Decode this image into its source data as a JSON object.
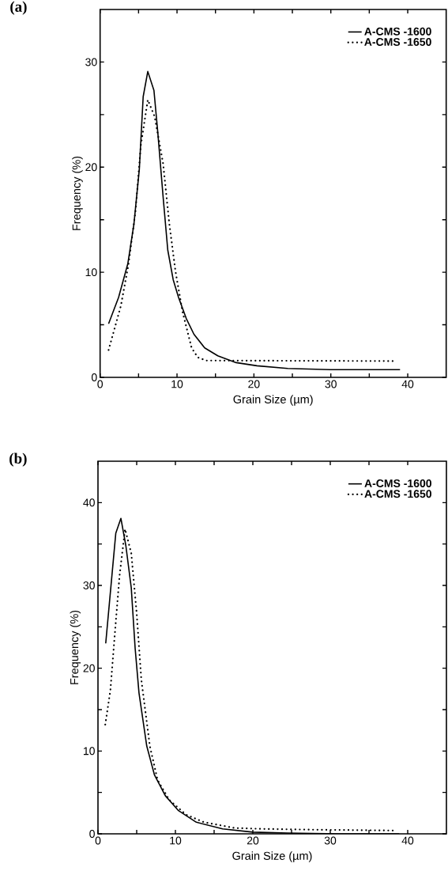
{
  "chart_data": [
    {
      "type": "line",
      "title": "(a)",
      "xlabel": "Grain Size (µm)",
      "ylabel": "Frequency (%)",
      "xlim": [
        0,
        45
      ],
      "ylim": [
        0,
        35
      ],
      "xticks": [
        0,
        {
          "value": 5,
          "label": null
        },
        10,
        {
          "value": 15,
          "label": null
        },
        20,
        {
          "value": 25,
          "label": null
        },
        30,
        {
          "value": 35,
          "label": null
        },
        40
      ],
      "yticks": [
        0,
        {
          "value": 5,
          "label": null
        },
        10,
        {
          "value": 15,
          "label": null
        },
        20,
        {
          "value": 25,
          "label": null
        },
        30
      ],
      "legend": "top right",
      "series": [
        {
          "name": "A-CMS -1600",
          "color": "#000000",
          "line_style": "solid",
          "x": [
            1.1,
            2.4,
            3.6,
            4.4,
            5.1,
            5.6,
            6.2,
            7.0,
            7.5,
            8.2,
            8.8,
            9.5,
            10.2,
            11.2,
            12.2,
            13.6,
            15.3,
            17.7,
            20.4,
            24.4,
            29.9,
            39
          ],
          "values": [
            5.1,
            7.6,
            10.8,
            14.6,
            19.8,
            26.7,
            29.1,
            27.3,
            23.3,
            17.1,
            12.1,
            9.3,
            7.6,
            5.6,
            4.1,
            2.8,
            2.05,
            1.4,
            1.1,
            0.85,
            0.73,
            0.73
          ]
        },
        {
          "name": "A-CMS -1650",
          "color": "#000000",
          "line_style": "dotted",
          "x": [
            1.1,
            2.7,
            3.7,
            4.6,
            5.3,
            6.2,
            7.1,
            8.2,
            9.0,
            9.8,
            10.7,
            11.9,
            12.7,
            13.8,
            38.4
          ],
          "values": [
            2.6,
            6.8,
            10.8,
            15.8,
            22.1,
            26.4,
            24.8,
            20.3,
            14.6,
            10.1,
            6.3,
            2.8,
            1.9,
            1.6,
            1.55
          ]
        }
      ]
    },
    {
      "type": "line",
      "title": "(b)",
      "xlabel": "Grain Size (µm)",
      "ylabel": "Frequency (%)",
      "xlim": [
        0,
        45
      ],
      "ylim": [
        0,
        45
      ],
      "xticks": [
        0,
        {
          "value": 5,
          "label": null
        },
        10,
        {
          "value": 15,
          "label": null
        },
        20,
        {
          "value": 25,
          "label": null
        },
        30,
        {
          "value": 35,
          "label": null
        },
        40
      ],
      "yticks": [
        0,
        {
          "value": 5,
          "label": null
        },
        10,
        {
          "value": 15,
          "label": null
        },
        20,
        {
          "value": 25,
          "label": null
        },
        30,
        {
          "value": 35,
          "label": null
        },
        40
      ],
      "legend": "top right",
      "series": [
        {
          "name": "A-CMS -1600",
          "color": "#000000",
          "line_style": "solid",
          "x": [
            1.0,
            2.3,
            2.96,
            3.6,
            4.3,
            4.8,
            5.3,
            6.3,
            7.3,
            8.7,
            10.4,
            12.7,
            16.1,
            20,
            24.5,
            31.2,
            38.9
          ],
          "values": [
            23.0,
            36.3,
            38.1,
            34.8,
            29.7,
            22.4,
            17.0,
            10.6,
            7.1,
            4.6,
            2.8,
            1.4,
            0.6,
            0.2,
            0.1,
            0.0,
            0.0
          ]
        },
        {
          "name": "A-CMS -1650",
          "color": "#000000",
          "line_style": "dotted",
          "x": [
            0.94,
            1.6,
            2.3,
            2.8,
            3.5,
            4.3,
            5.0,
            5.6,
            6.7,
            7.7,
            9.2,
            11.4,
            13.7,
            17.7,
            21.1,
            27.8,
            38.3
          ],
          "values": [
            13.2,
            17.3,
            25.6,
            31.3,
            36.8,
            33.9,
            26.6,
            18.6,
            10.6,
            6.5,
            4.1,
            2.3,
            1.4,
            0.7,
            0.6,
            0.5,
            0.4
          ]
        }
      ]
    }
  ]
}
